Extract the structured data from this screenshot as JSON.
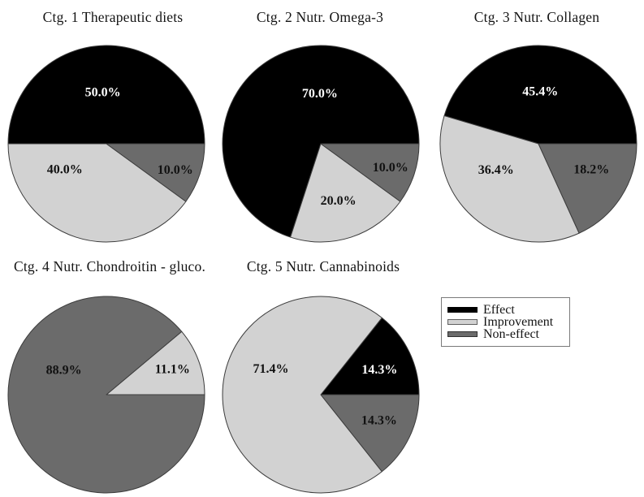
{
  "palette": {
    "Effect": "#000000",
    "Improvement": "#d2d2d2",
    "Non-effect": "#6b6b6b"
  },
  "slice_outline_color": "#3c3c3c",
  "legend": {
    "items": [
      {
        "label": "Effect",
        "color_key": "Effect"
      },
      {
        "label": "Improvement",
        "color_key": "Improvement"
      },
      {
        "label": "Non-effect",
        "color_key": "Non-effect"
      }
    ]
  },
  "chart_data": [
    {
      "type": "pie",
      "title": "Ctg. 1 Therapeutic diets",
      "start_angle_deg": 0,
      "direction": "counterclockwise",
      "slices": [
        {
          "name": "Effect",
          "value": 50.0,
          "label": "50.0%",
          "label_angle": 94,
          "label_r": 0.52,
          "label_color": "#ffffff"
        },
        {
          "name": "Improvement",
          "value": 40.0,
          "label": "40.0%",
          "label_angle": 212,
          "label_r": 0.5,
          "label_color": "#111111"
        },
        {
          "name": "Non-effect",
          "value": 10.0,
          "label": "10.0%",
          "label_angle": 339,
          "label_r": 0.75,
          "label_color": "#111111"
        }
      ]
    },
    {
      "type": "pie",
      "title": "Ctg. 2 Nutr. Omega-3",
      "start_angle_deg": 0,
      "direction": "counterclockwise",
      "slices": [
        {
          "name": "Effect",
          "value": 70.0,
          "label": "70.0%",
          "label_angle": 91,
          "label_r": 0.51,
          "label_color": "#ffffff"
        },
        {
          "name": "Improvement",
          "value": 20.0,
          "label": "20.0%",
          "label_angle": 287,
          "label_r": 0.61,
          "label_color": "#111111"
        },
        {
          "name": "Non-effect",
          "value": 10.0,
          "label": "10.0%",
          "label_angle": 341,
          "label_r": 0.75,
          "label_color": "#111111"
        }
      ]
    },
    {
      "type": "pie",
      "title": "Ctg. 3 Nutr. Collagen",
      "start_angle_deg": 0,
      "direction": "counterclockwise",
      "slices": [
        {
          "name": "Effect",
          "value": 45.4,
          "label": "45.4%",
          "label_angle": 88,
          "label_r": 0.53,
          "label_color": "#ffffff"
        },
        {
          "name": "Improvement",
          "value": 36.4,
          "label": "36.4%",
          "label_angle": 212,
          "label_r": 0.51,
          "label_color": "#111111"
        },
        {
          "name": "Non-effect",
          "value": 18.2,
          "label": "18.2%",
          "label_angle": 334,
          "label_r": 0.6,
          "label_color": "#111111"
        }
      ]
    },
    {
      "type": "pie",
      "title": "Ctg. 4 Nutr. Chondroitin - gluco.",
      "start_angle_deg": 0,
      "direction": "counterclockwise",
      "slices": [
        {
          "name": "Improvement",
          "value": 11.1,
          "label": "11.1%",
          "label_angle": 21,
          "label_r": 0.72,
          "label_color": "#111111"
        },
        {
          "name": "Non-effect",
          "value": 88.9,
          "label": "88.9%",
          "label_angle": 150,
          "label_r": 0.5,
          "label_color": "#111111"
        }
      ]
    },
    {
      "type": "pie",
      "title": "Ctg. 5 Nutr. Cannabinoids",
      "start_angle_deg": 0,
      "direction": "counterclockwise",
      "slices": [
        {
          "name": "Effect",
          "value": 14.3,
          "label": "14.3%",
          "label_angle": 23,
          "label_r": 0.65,
          "label_color": "#ffffff"
        },
        {
          "name": "Improvement",
          "value": 71.4,
          "label": "71.4%",
          "label_angle": 153,
          "label_r": 0.57,
          "label_color": "#111111"
        },
        {
          "name": "Non-effect",
          "value": 14.3,
          "label": "14.3%",
          "label_angle": 336,
          "label_r": 0.65,
          "label_color": "#111111"
        }
      ]
    }
  ]
}
